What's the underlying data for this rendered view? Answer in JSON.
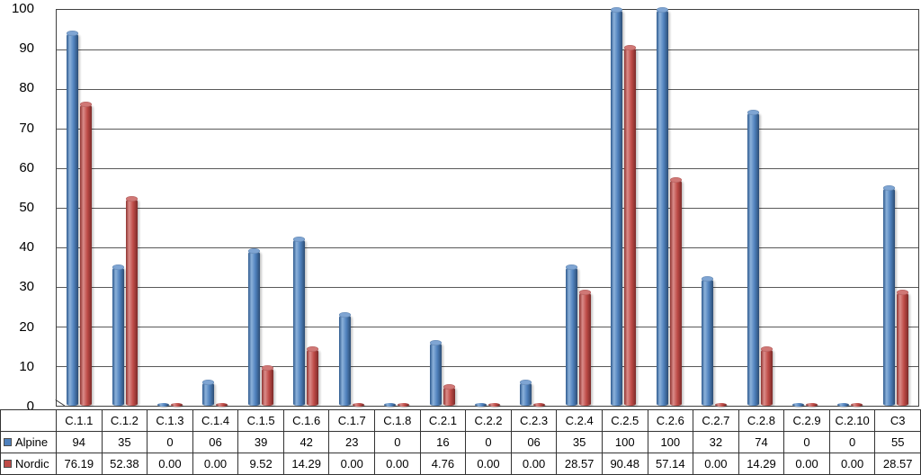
{
  "chart_data": {
    "type": "bar",
    "title": "",
    "xlabel": "",
    "ylabel": "",
    "ylim": [
      0,
      100
    ],
    "grid": true,
    "legend_position": "table-left",
    "y_ticks": [
      "100",
      "90",
      "80",
      "70",
      "60",
      "50",
      "40",
      "30",
      "20",
      "10",
      "0"
    ],
    "categories": [
      "C.1.1",
      "C.1.2",
      "C.1.3",
      "C.1.4",
      "C.1.5",
      "C.1.6",
      "C.1.7",
      "C.1.8",
      "C.2.1",
      "C.2.2",
      "C.2.3",
      "C.2.4",
      "C.2.5",
      "C.2.6",
      "C.2.7",
      "C.2.8",
      "C.2.9",
      "C.2.10",
      "C3"
    ],
    "series": [
      {
        "name": "Alpine",
        "color": "#4f81bd",
        "values": [
          94,
          35,
          0,
          6,
          39,
          42,
          23,
          0,
          16,
          0,
          6,
          35,
          100,
          100,
          32,
          74,
          0,
          0,
          55
        ]
      },
      {
        "name": "Nordic",
        "color": "#bf4b47",
        "values": [
          76.19,
          52.38,
          0,
          0,
          9.52,
          14.29,
          0,
          0,
          4.76,
          0,
          0,
          28.57,
          90.48,
          57.14,
          0,
          14.29,
          0,
          0,
          28.57
        ]
      }
    ],
    "table_values": [
      [
        "94",
        "35",
        "0",
        "06",
        "39",
        "42",
        "23",
        "0",
        "16",
        "0",
        "06",
        "35",
        "100",
        "100",
        "32",
        "74",
        "0",
        "0",
        "55"
      ],
      [
        "76.19",
        "52.38",
        "0.00",
        "0.00",
        "9.52",
        "14.29",
        "0.00",
        "0.00",
        "4.76",
        "0.00",
        "0.00",
        "28.57",
        "90.48",
        "57.14",
        "0.00",
        "14.29",
        "0.00",
        "0.00",
        "28.57"
      ]
    ]
  }
}
